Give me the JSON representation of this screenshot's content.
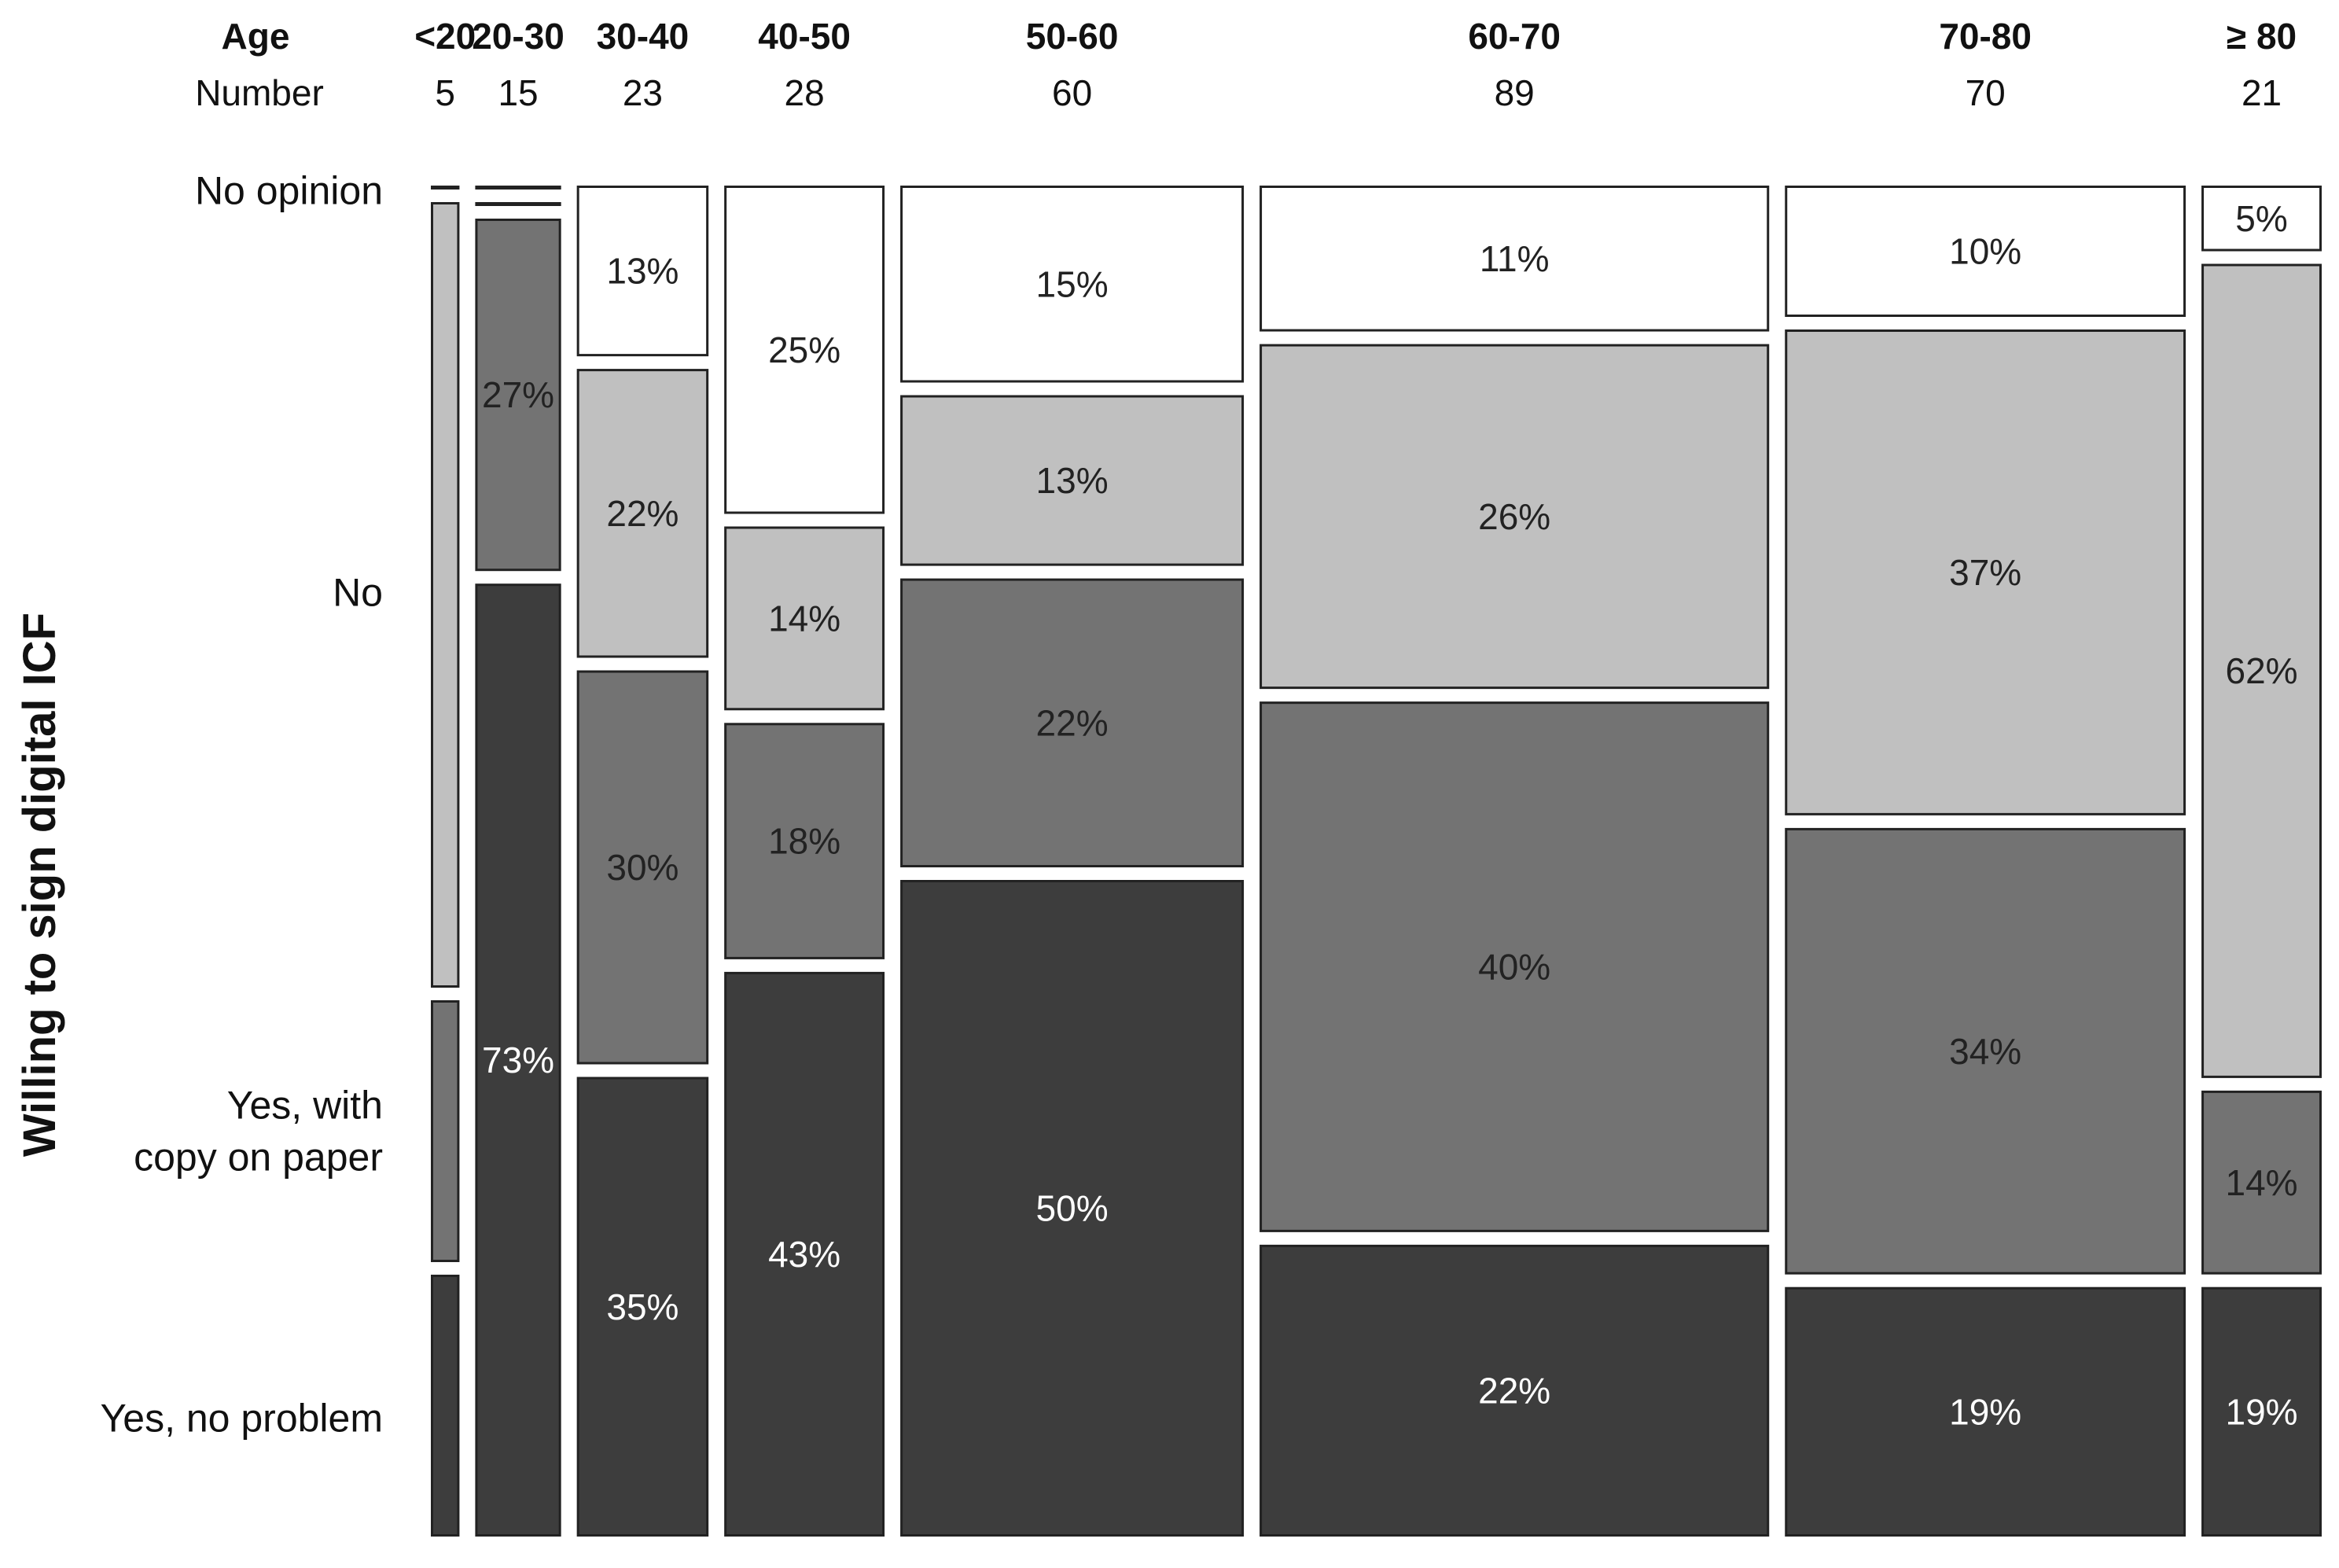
{
  "chart_data": {
    "type": "mosaic",
    "header": {
      "age_label": "Age",
      "number_label": "Number"
    },
    "ylabel": "Willing to sign digital ICF",
    "categories": [
      "No opinion",
      "No",
      "Yes, with copy on paper",
      "Yes, no problem"
    ],
    "category_label_lines": [
      [
        "No opinion"
      ],
      [
        "No"
      ],
      [
        "Yes, with",
        "copy on paper"
      ],
      [
        "Yes, no problem"
      ]
    ],
    "colors": [
      "#ffffff",
      "#c0c0c0",
      "#737373",
      "#3d3d3d"
    ],
    "label_colors": [
      "#222222",
      "#222222",
      "#222222",
      "#ffffff"
    ],
    "groups": [
      {
        "age": "<20",
        "number": "5",
        "values": [
          0,
          60,
          20,
          20
        ],
        "labels": [
          "",
          "",
          "",
          ""
        ]
      },
      {
        "age": "20-30",
        "number": "15",
        "values": [
          0,
          0,
          27,
          73
        ],
        "labels": [
          "",
          "",
          "27%",
          "73%"
        ]
      },
      {
        "age": "30-40",
        "number": "23",
        "values": [
          13,
          22,
          30,
          35
        ],
        "labels": [
          "13%",
          "22%",
          "30%",
          "35%"
        ]
      },
      {
        "age": "40-50",
        "number": "28",
        "values": [
          25,
          14,
          18,
          43
        ],
        "labels": [
          "25%",
          "14%",
          "18%",
          "43%"
        ]
      },
      {
        "age": "50-60",
        "number": "60",
        "values": [
          15,
          13,
          22,
          50
        ],
        "labels": [
          "15%",
          "13%",
          "22%",
          "50%"
        ]
      },
      {
        "age": "60-70",
        "number": "89",
        "values": [
          11,
          26,
          40,
          22
        ],
        "labels": [
          "11%",
          "26%",
          "40%",
          "22%"
        ]
      },
      {
        "age": "70-80",
        "number": "70",
        "values": [
          10,
          37,
          34,
          19
        ],
        "labels": [
          "10%",
          "37%",
          "34%",
          "19%"
        ]
      },
      {
        "age": "≥ 80",
        "number": "21",
        "values": [
          5,
          62,
          14,
          19
        ],
        "labels": [
          "5%",
          "62%",
          "14%",
          "19%"
        ]
      }
    ]
  }
}
